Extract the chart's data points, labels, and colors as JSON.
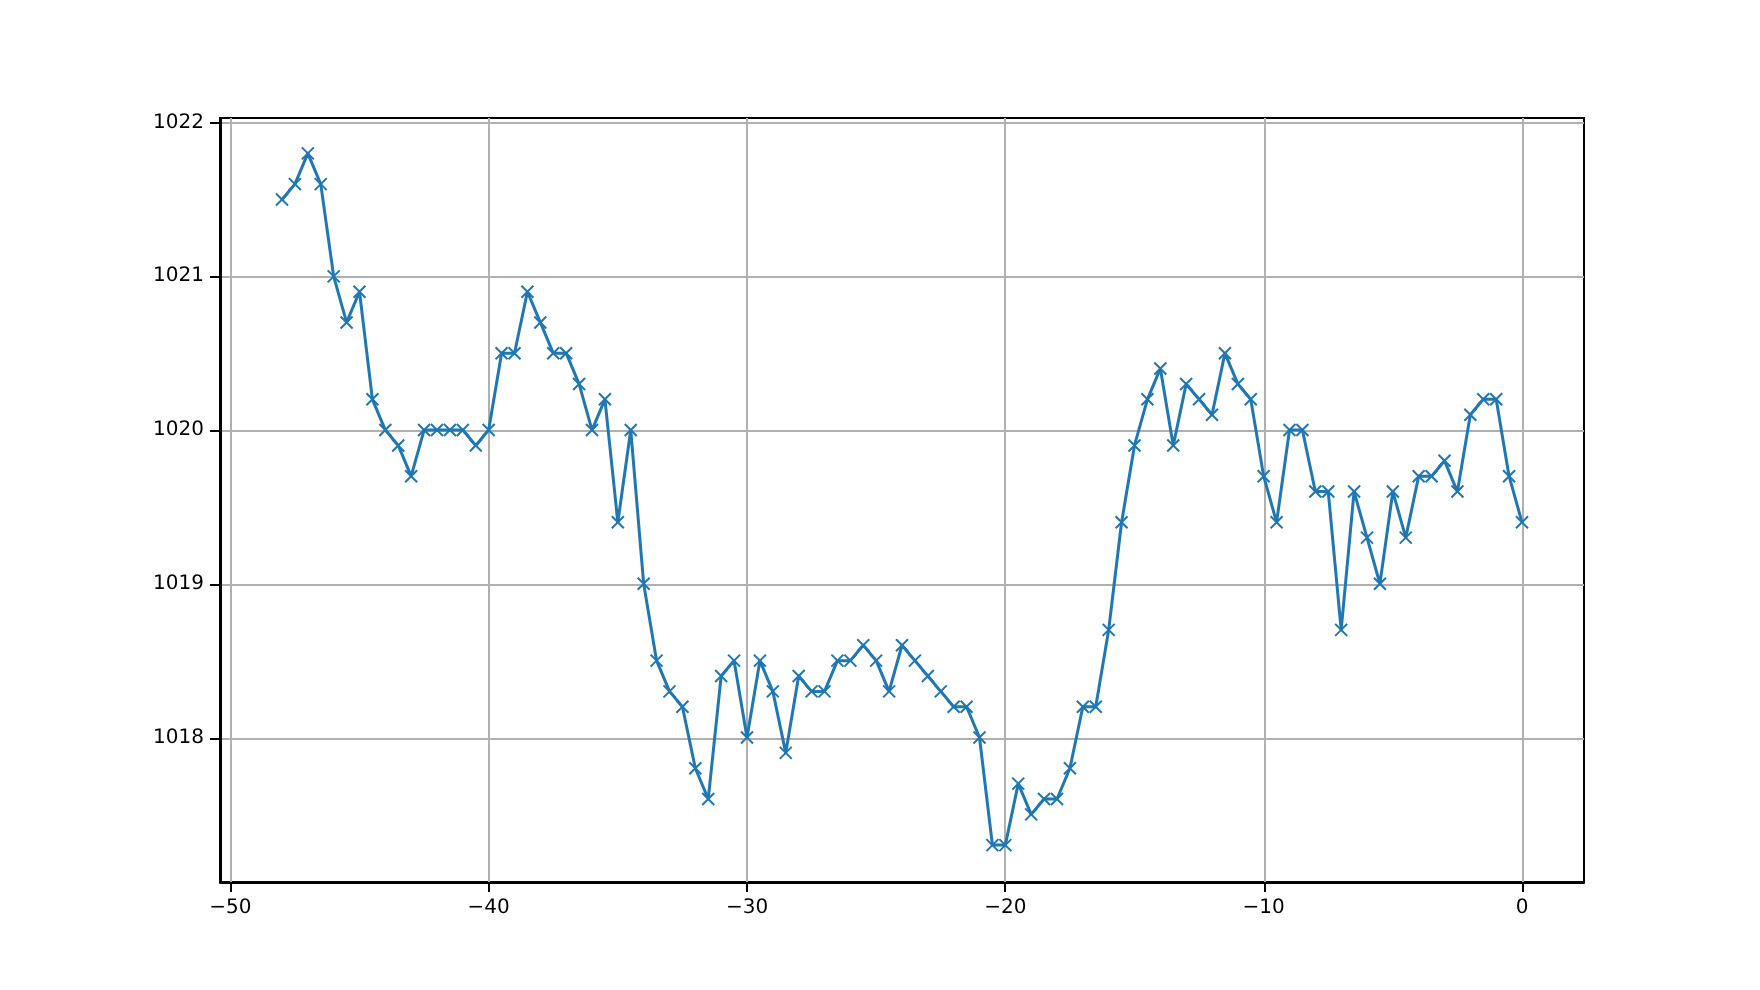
{
  "chart_data": {
    "type": "line",
    "x": [
      -48,
      -47.5,
      -47,
      -46.5,
      -46,
      -45.5,
      -45,
      -44.5,
      -44,
      -43.5,
      -43,
      -42.5,
      -42,
      -41.5,
      -41,
      -40.5,
      -40,
      -39.5,
      -39,
      -38.5,
      -38,
      -37.5,
      -37,
      -36.5,
      -36,
      -35.5,
      -35,
      -34.5,
      -34,
      -33.5,
      -33,
      -32.5,
      -32,
      -31.5,
      -31,
      -30.5,
      -30,
      -29.5,
      -29,
      -28.5,
      -28,
      -27.5,
      -27,
      -26.5,
      -26,
      -25.5,
      -25,
      -24.5,
      -24,
      -23.5,
      -23,
      -22.5,
      -22,
      -21.5,
      -21,
      -20.5,
      -20,
      -19.5,
      -19,
      -18.5,
      -18,
      -17.5,
      -17,
      -16.5,
      -16,
      -15.5,
      -15,
      -14.5,
      -14,
      -13.5,
      -13,
      -12.5,
      -12,
      -11.5,
      -11,
      -10.5,
      -10,
      -9.5,
      -9,
      -8.5,
      -8,
      -7.5,
      -7,
      -6.5,
      -6,
      -5.5,
      -5,
      -4.5,
      -4,
      -3.5,
      -3,
      -2.5,
      -2,
      -1.5,
      -1,
      -0.5,
      0
    ],
    "series": [
      {
        "color": "#1f77b4",
        "values": [
          1021.5,
          1021.6,
          1021.8,
          1021.6,
          1021.0,
          1020.7,
          1020.9,
          1020.2,
          1020.0,
          1019.9,
          1019.7,
          1020.0,
          1020.0,
          1020.0,
          1020.0,
          1019.9,
          1020.0,
          1020.5,
          1020.5,
          1020.9,
          1020.7,
          1020.5,
          1020.5,
          1020.3,
          1020.0,
          1020.2,
          1019.4,
          1020.0,
          1019.0,
          1018.5,
          1018.3,
          1018.2,
          1017.8,
          1017.6,
          1018.4,
          1018.5,
          1018.0,
          1018.5,
          1018.3,
          1017.9,
          1018.4,
          1018.3,
          1018.3,
          1018.5,
          1018.5,
          1018.6,
          1018.5,
          1018.3,
          1018.6,
          1018.5,
          1018.4,
          1018.3,
          1018.2,
          1018.2,
          1018.0,
          1017.3,
          1017.3,
          1017.7,
          1017.5,
          1017.6,
          1017.6,
          1017.8,
          1018.2,
          1018.2,
          1018.7,
          1019.4,
          1019.9,
          1020.2,
          1020.4,
          1019.9,
          1020.3,
          1020.2,
          1020.1,
          1020.5,
          1020.3,
          1020.2,
          1019.7,
          1019.4,
          1020.0,
          1020.0,
          1019.6,
          1019.6,
          1018.7,
          1019.6,
          1019.3,
          1019.0,
          1019.6,
          1019.3,
          1019.7,
          1019.7,
          1019.8,
          1019.6,
          1020.1,
          1020.2,
          1020.2,
          1019.7,
          1019.4
        ]
      }
    ],
    "xlim": [
      -50.4,
      2.4
    ],
    "ylim": [
      1017.06,
      1022.03
    ],
    "xticks": [
      {
        "value": -50,
        "label": "−50"
      },
      {
        "value": -40,
        "label": "−40"
      },
      {
        "value": -30,
        "label": "−30"
      },
      {
        "value": -20,
        "label": "−20"
      },
      {
        "value": -10,
        "label": "−10"
      },
      0
    ],
    "yticks": [
      1018,
      1019,
      1020,
      1021,
      1022
    ],
    "grid": true,
    "marker": "cross",
    "line_style": "solid"
  }
}
